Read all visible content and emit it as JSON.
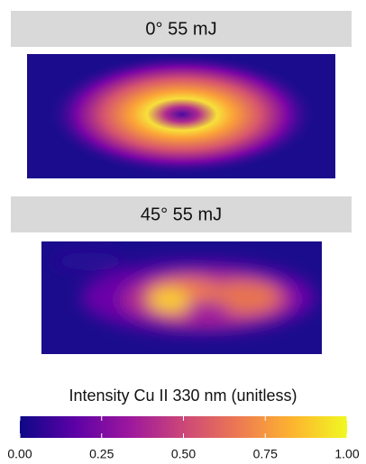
{
  "panels": [
    {
      "title": "0° 55 mJ"
    },
    {
      "title": "45° 55 mJ"
    }
  ],
  "colorbar": {
    "label": "Intensity Cu II 330 nm (unitless)",
    "lim": [
      0,
      1
    ],
    "ticks": [
      {
        "value": 0,
        "label": "0.00"
      },
      {
        "value": 0.25,
        "label": "0.25"
      },
      {
        "value": 0.5,
        "label": "0.50"
      },
      {
        "value": 0.75,
        "label": "0.75"
      },
      {
        "value": 1,
        "label": "1.00"
      }
    ],
    "colors": [
      "#0d0887",
      "#5c01a6",
      "#9c179e",
      "#cc4778",
      "#ed7953",
      "#fdb42f",
      "#f0f921"
    ]
  }
}
